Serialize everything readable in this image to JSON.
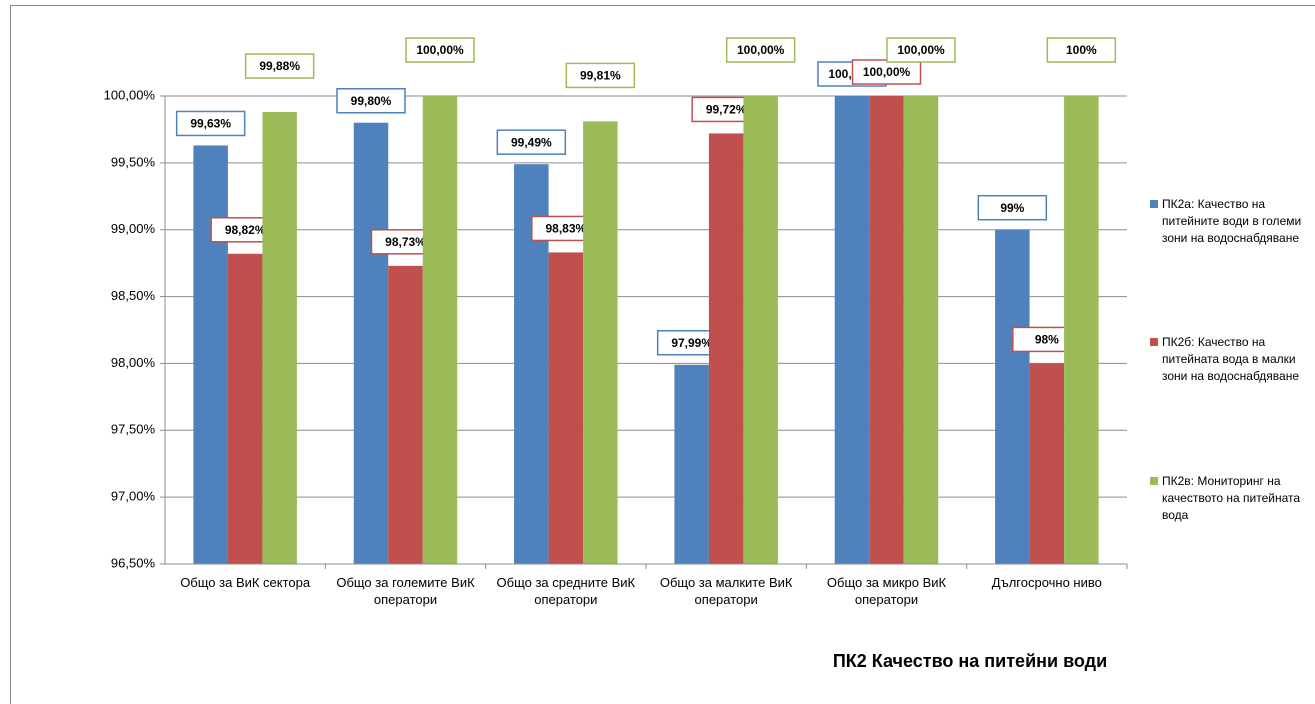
{
  "chart_data": {
    "type": "bar",
    "title": "ПК2 Качество на питейни води",
    "categories": [
      "Общо за ВиК сектора",
      "Общо за големите ВиК оператори",
      "Общо за средните ВиК оператори",
      "Общо за малките ВиК оператори",
      "Общо за микро ВиК оператори",
      "Дългосрочно ниво"
    ],
    "series": [
      {
        "name": "ПК2а: Качество на питейните води в големи зони на водоснабдяване",
        "color": "#4f81bd",
        "values": [
          99.63,
          99.8,
          99.49,
          97.99,
          100.0,
          99
        ],
        "value_labels": [
          "99,63%",
          "99,80%",
          "99,49%",
          "97,99%",
          "100,00%",
          "99%"
        ]
      },
      {
        "name": "ПК2б: Качество на питейната вода в малки зони на водоснабдяване",
        "color": "#c0504d",
        "values": [
          98.82,
          98.73,
          98.83,
          99.72,
          100.0,
          98
        ],
        "value_labels": [
          "98,82%",
          "98,73%",
          "98,83%",
          "99,72%",
          "100,00%",
          "98%"
        ]
      },
      {
        "name": "ПК2в: Мониторинг на качеството на питейната вода",
        "color": "#9bbb59",
        "values": [
          99.88,
          100.0,
          99.81,
          100.0,
          100.0,
          100
        ],
        "value_labels": [
          "99,88%",
          "100,00%",
          "99,81%",
          "100,00%",
          "100,00%",
          "100%"
        ]
      }
    ],
    "ylim": [
      96.5,
      100
    ],
    "yticks": [
      {
        "value": 96.5,
        "label": "96,50%"
      },
      {
        "value": 97,
        "label": "97,00%"
      },
      {
        "value": 97.5,
        "label": "97,50%"
      },
      {
        "value": 98,
        "label": "98,00%"
      },
      {
        "value": 98.5,
        "label": "98,50%"
      },
      {
        "value": 99,
        "label": "99,00%"
      },
      {
        "value": 99.5,
        "label": "99,50%"
      },
      {
        "value": 100,
        "label": "100,00%"
      }
    ],
    "grid": true,
    "legend": "right"
  }
}
